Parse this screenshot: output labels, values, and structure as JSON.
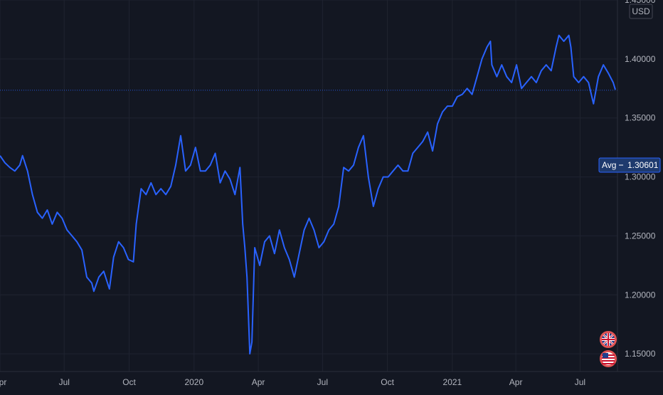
{
  "chart_data": {
    "type": "line",
    "title": "",
    "xlabel": "",
    "ylabel": "",
    "currency": "USD",
    "ylim": [
      1.135,
      1.45
    ],
    "xlim": [
      "2019-04-01",
      "2021-08-23"
    ],
    "y_ticks": [
      {
        "value": 1.45,
        "label": "1.45000"
      },
      {
        "value": 1.4,
        "label": "1.40000"
      },
      {
        "value": 1.35,
        "label": "1.35000"
      },
      {
        "value": 1.3,
        "label": "1.30000"
      },
      {
        "value": 1.25,
        "label": "1.25000"
      },
      {
        "value": 1.2,
        "label": "1.20000"
      },
      {
        "value": 1.15,
        "label": "1.15000"
      }
    ],
    "x_ticks": [
      {
        "date": "2019-04-01",
        "label": "Apr"
      },
      {
        "date": "2019-07-01",
        "label": "Jul"
      },
      {
        "date": "2019-10-01",
        "label": "Oct"
      },
      {
        "date": "2020-01-01",
        "label": "2020"
      },
      {
        "date": "2020-04-01",
        "label": "Apr"
      },
      {
        "date": "2020-07-01",
        "label": "Jul"
      },
      {
        "date": "2020-10-01",
        "label": "Oct"
      },
      {
        "date": "2021-01-01",
        "label": "2021"
      },
      {
        "date": "2021-04-01",
        "label": "Apr"
      },
      {
        "date": "2021-07-01",
        "label": "Jul"
      }
    ],
    "grid": true,
    "line_color": "#2962ff",
    "avg_line": {
      "label": "Avg",
      "value": 1.30601,
      "value_label": "1.30601",
      "line_level": 1.3735
    },
    "series": [
      {
        "points": [
          [
            "2019-04-01",
            1.318
          ],
          [
            "2019-04-08",
            1.312
          ],
          [
            "2019-04-15",
            1.308
          ],
          [
            "2019-04-22",
            1.305
          ],
          [
            "2019-04-29",
            1.31
          ],
          [
            "2019-05-03",
            1.318
          ],
          [
            "2019-05-10",
            1.305
          ],
          [
            "2019-05-17",
            1.285
          ],
          [
            "2019-05-24",
            1.27
          ],
          [
            "2019-05-31",
            1.265
          ],
          [
            "2019-06-07",
            1.272
          ],
          [
            "2019-06-14",
            1.26
          ],
          [
            "2019-06-21",
            1.27
          ],
          [
            "2019-06-28",
            1.265
          ],
          [
            "2019-07-05",
            1.255
          ],
          [
            "2019-07-12",
            1.25
          ],
          [
            "2019-07-19",
            1.245
          ],
          [
            "2019-07-26",
            1.238
          ],
          [
            "2019-08-02",
            1.215
          ],
          [
            "2019-08-09",
            1.21
          ],
          [
            "2019-08-12",
            1.203
          ],
          [
            "2019-08-19",
            1.215
          ],
          [
            "2019-08-26",
            1.22
          ],
          [
            "2019-09-03",
            1.205
          ],
          [
            "2019-09-09",
            1.232
          ],
          [
            "2019-09-16",
            1.245
          ],
          [
            "2019-09-23",
            1.24
          ],
          [
            "2019-09-30",
            1.23
          ],
          [
            "2019-10-07",
            1.228
          ],
          [
            "2019-10-11",
            1.26
          ],
          [
            "2019-10-18",
            1.29
          ],
          [
            "2019-10-25",
            1.285
          ],
          [
            "2019-11-01",
            1.295
          ],
          [
            "2019-11-08",
            1.285
          ],
          [
            "2019-11-15",
            1.29
          ],
          [
            "2019-11-22",
            1.285
          ],
          [
            "2019-11-29",
            1.292
          ],
          [
            "2019-12-06",
            1.31
          ],
          [
            "2019-12-13",
            1.335
          ],
          [
            "2019-12-20",
            1.305
          ],
          [
            "2019-12-27",
            1.31
          ],
          [
            "2020-01-03",
            1.325
          ],
          [
            "2020-01-10",
            1.305
          ],
          [
            "2020-01-17",
            1.305
          ],
          [
            "2020-01-24",
            1.31
          ],
          [
            "2020-01-31",
            1.32
          ],
          [
            "2020-02-07",
            1.295
          ],
          [
            "2020-02-14",
            1.305
          ],
          [
            "2020-02-21",
            1.298
          ],
          [
            "2020-02-28",
            1.285
          ],
          [
            "2020-03-06",
            1.308
          ],
          [
            "2020-03-10",
            1.26
          ],
          [
            "2020-03-13",
            1.24
          ],
          [
            "2020-03-16",
            1.215
          ],
          [
            "2020-03-20",
            1.15
          ],
          [
            "2020-03-23",
            1.16
          ],
          [
            "2020-03-27",
            1.24
          ],
          [
            "2020-04-03",
            1.225
          ],
          [
            "2020-04-10",
            1.245
          ],
          [
            "2020-04-17",
            1.25
          ],
          [
            "2020-04-24",
            1.235
          ],
          [
            "2020-05-01",
            1.255
          ],
          [
            "2020-05-08",
            1.24
          ],
          [
            "2020-05-15",
            1.23
          ],
          [
            "2020-05-22",
            1.215
          ],
          [
            "2020-05-29",
            1.235
          ],
          [
            "2020-06-05",
            1.255
          ],
          [
            "2020-06-12",
            1.265
          ],
          [
            "2020-06-19",
            1.255
          ],
          [
            "2020-06-26",
            1.24
          ],
          [
            "2020-07-03",
            1.245
          ],
          [
            "2020-07-10",
            1.255
          ],
          [
            "2020-07-17",
            1.26
          ],
          [
            "2020-07-24",
            1.275
          ],
          [
            "2020-07-31",
            1.308
          ],
          [
            "2020-08-07",
            1.305
          ],
          [
            "2020-08-14",
            1.31
          ],
          [
            "2020-08-21",
            1.325
          ],
          [
            "2020-08-28",
            1.335
          ],
          [
            "2020-09-04",
            1.3
          ],
          [
            "2020-09-11",
            1.275
          ],
          [
            "2020-09-18",
            1.29
          ],
          [
            "2020-09-25",
            1.3
          ],
          [
            "2020-10-02",
            1.3
          ],
          [
            "2020-10-09",
            1.305
          ],
          [
            "2020-10-16",
            1.31
          ],
          [
            "2020-10-23",
            1.305
          ],
          [
            "2020-10-30",
            1.305
          ],
          [
            "2020-11-06",
            1.32
          ],
          [
            "2020-11-13",
            1.325
          ],
          [
            "2020-11-20",
            1.33
          ],
          [
            "2020-11-27",
            1.338
          ],
          [
            "2020-12-04",
            1.322
          ],
          [
            "2020-12-11",
            1.345
          ],
          [
            "2020-12-18",
            1.355
          ],
          [
            "2020-12-25",
            1.36
          ],
          [
            "2021-01-01",
            1.36
          ],
          [
            "2021-01-08",
            1.368
          ],
          [
            "2021-01-15",
            1.37
          ],
          [
            "2021-01-22",
            1.375
          ],
          [
            "2021-01-29",
            1.37
          ],
          [
            "2021-02-05",
            1.385
          ],
          [
            "2021-02-12",
            1.4
          ],
          [
            "2021-02-19",
            1.41
          ],
          [
            "2021-02-24",
            1.415
          ],
          [
            "2021-02-26",
            1.395
          ],
          [
            "2021-03-05",
            1.385
          ],
          [
            "2021-03-12",
            1.395
          ],
          [
            "2021-03-19",
            1.385
          ],
          [
            "2021-03-26",
            1.38
          ],
          [
            "2021-04-02",
            1.395
          ],
          [
            "2021-04-09",
            1.375
          ],
          [
            "2021-04-16",
            1.38
          ],
          [
            "2021-04-23",
            1.385
          ],
          [
            "2021-04-30",
            1.38
          ],
          [
            "2021-05-07",
            1.39
          ],
          [
            "2021-05-14",
            1.395
          ],
          [
            "2021-05-21",
            1.39
          ],
          [
            "2021-05-28",
            1.41
          ],
          [
            "2021-06-01",
            1.42
          ],
          [
            "2021-06-08",
            1.415
          ],
          [
            "2021-06-15",
            1.42
          ],
          [
            "2021-06-18",
            1.41
          ],
          [
            "2021-06-22",
            1.385
          ],
          [
            "2021-06-29",
            1.38
          ],
          [
            "2021-07-06",
            1.385
          ],
          [
            "2021-07-13",
            1.38
          ],
          [
            "2021-07-20",
            1.362
          ],
          [
            "2021-07-27",
            1.385
          ],
          [
            "2021-08-03",
            1.395
          ],
          [
            "2021-08-10",
            1.388
          ],
          [
            "2021-08-17",
            1.38
          ],
          [
            "2021-08-20",
            1.374
          ]
        ]
      }
    ]
  },
  "icons": {
    "top": "uk-flag-icon",
    "bottom": "us-flag-icon"
  }
}
